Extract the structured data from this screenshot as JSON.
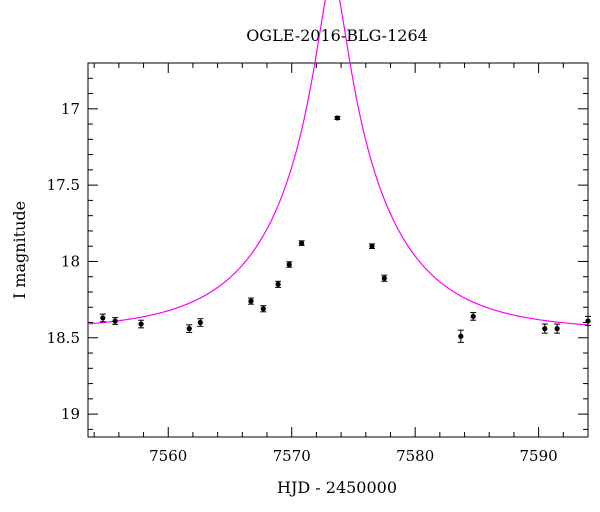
{
  "chart_data": {
    "type": "scatter",
    "title": "OGLE-2016-BLG-1264",
    "xlabel": "HJD - 2450000",
    "ylabel": "I magnitude",
    "xlim": [
      7553.5,
      7594
    ],
    "ylim": [
      19.15,
      16.7
    ],
    "y_inverted": true,
    "xticks": [
      7560,
      7570,
      7580,
      7590
    ],
    "xtick_labels": [
      "7560",
      "7570",
      "7580",
      "7590"
    ],
    "yticks": [
      17,
      17.5,
      18,
      18.5,
      19
    ],
    "ytick_labels": [
      "17",
      "17.5",
      "18",
      "18.5",
      "19"
    ],
    "grid": false,
    "series": [
      {
        "kind": "points",
        "color": "#000000",
        "x": [
          7554.7,
          7555.7,
          7557.8,
          7561.7,
          7562.6,
          7566.7,
          7567.7,
          7568.9,
          7569.8,
          7570.8,
          7573.7,
          7576.5,
          7577.5,
          7583.7,
          7584.7,
          7590.5,
          7591.5,
          7594.0
        ],
        "y": [
          18.37,
          18.39,
          18.41,
          18.44,
          18.4,
          18.26,
          18.31,
          18.15,
          18.02,
          17.88,
          17.06,
          17.9,
          18.11,
          18.49,
          18.36,
          18.44,
          18.44,
          18.39
        ],
        "err": [
          0.025,
          0.022,
          0.025,
          0.025,
          0.025,
          0.02,
          0.02,
          0.02,
          0.018,
          0.015,
          0.01,
          0.015,
          0.02,
          0.04,
          0.025,
          0.03,
          0.03,
          0.03
        ]
      },
      {
        "kind": "model",
        "color": "#ff00ff",
        "model": {
          "t0": 7573.3,
          "u0": 0.12,
          "tE": 8.8,
          "base": 18.455
        }
      }
    ]
  }
}
